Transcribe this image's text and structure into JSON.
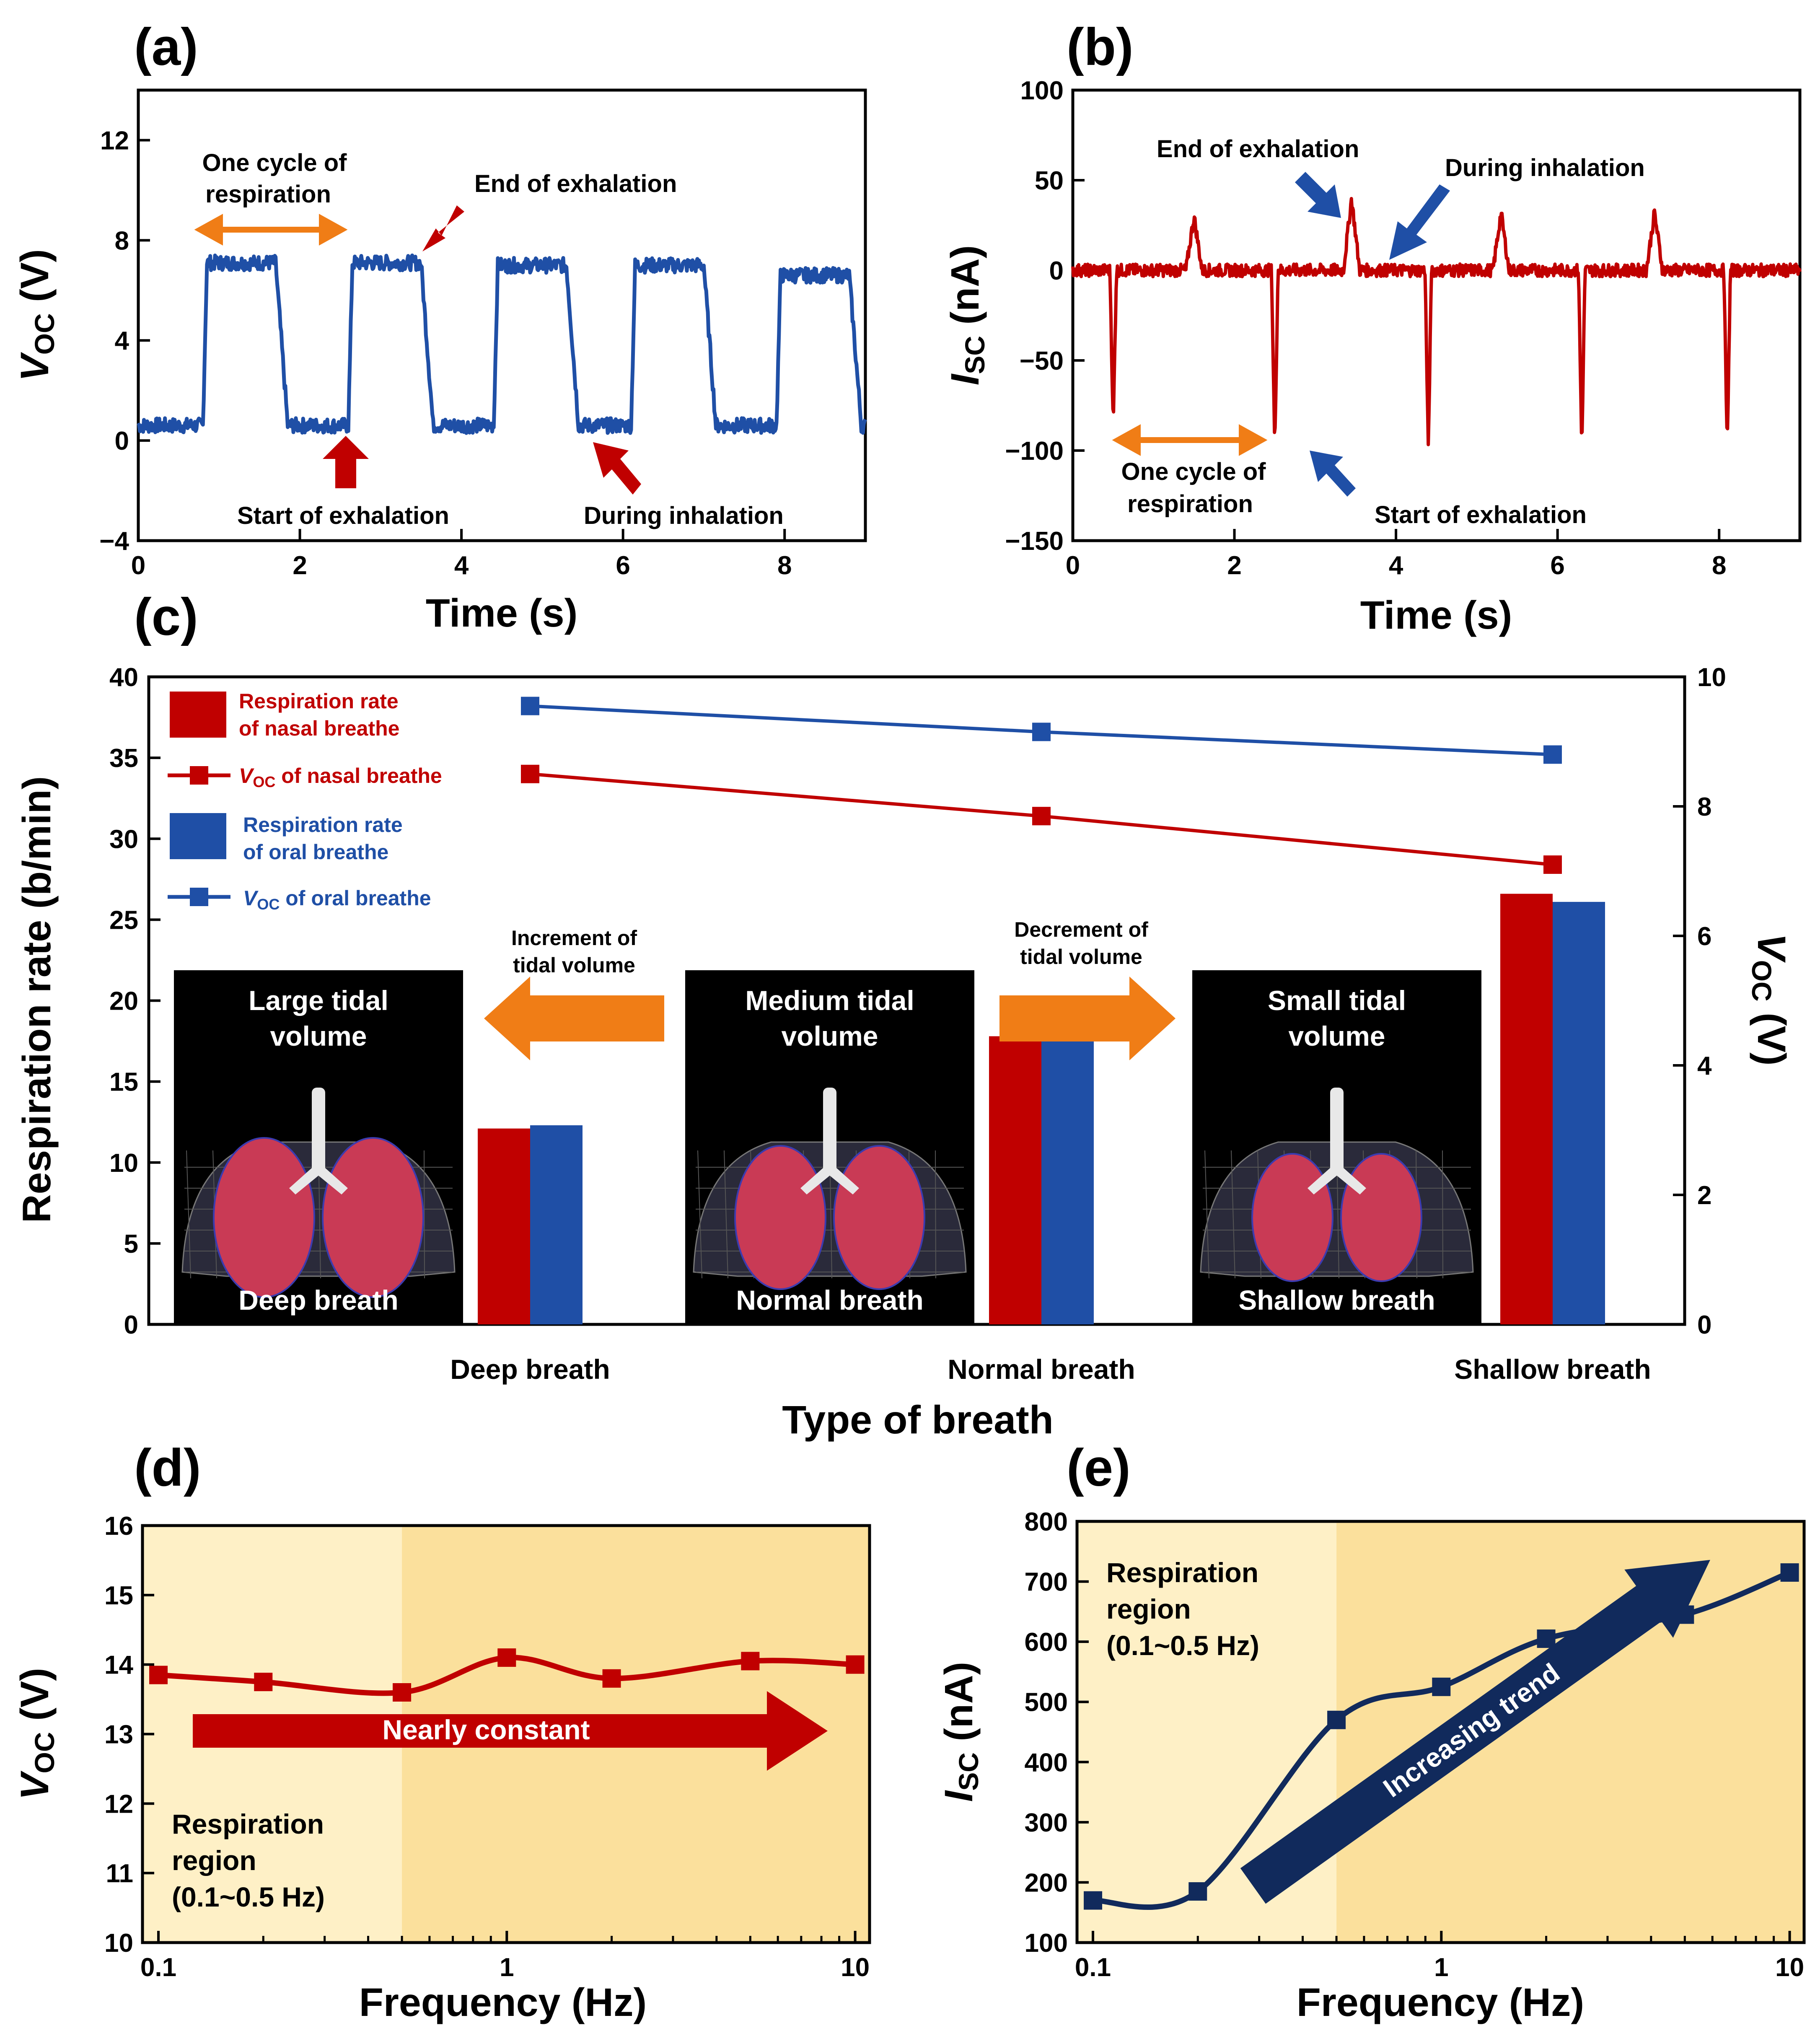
{
  "colors": {
    "blue": "#1f4fa6",
    "red": "#c00000",
    "navy": "#112a5c",
    "orange": "#f07d16",
    "region_light": "#fef0c6",
    "region_dark": "#fbe09c"
  },
  "panels": {
    "a": "(a)",
    "b": "(b)",
    "c": "(c)",
    "d": "(d)",
    "e": "(e)"
  },
  "chart_data": [
    {
      "id": "a",
      "type": "line",
      "series_description": "Square-wave open-circuit voltage, ~0.5 V baseline with ~7 V plateaus",
      "xlabel": "Time (s)",
      "ylabel_main": "V",
      "ylabel_sub": "OC",
      "ylabel_unit": " (V)",
      "xlim": [
        0,
        9
      ],
      "ylim": [
        -4,
        14
      ],
      "xticks": [
        0,
        2,
        4,
        6,
        8
      ],
      "yticks": [
        -4,
        0,
        4,
        8,
        12
      ],
      "ytick_labels": [
        "−4",
        "0",
        "4",
        "8",
        "12"
      ],
      "plateaus": [
        {
          "start": 0.8,
          "end": 1.7,
          "level": 7.1
        },
        {
          "start": 2.6,
          "end": 3.5,
          "level": 7.1
        },
        {
          "start": 4.4,
          "end": 5.3,
          "level": 7.0
        },
        {
          "start": 6.1,
          "end": 7.0,
          "level": 7.0
        },
        {
          "start": 7.9,
          "end": 8.8,
          "level": 6.6
        }
      ],
      "baseline": 0.6,
      "annotations": {
        "cycle_l1": "One cycle of",
        "cycle_l2": "respiration",
        "end_exh": "End of exhalation",
        "start_exh": "Start of exhalation",
        "during_inh": "During inhalation"
      }
    },
    {
      "id": "b",
      "type": "line",
      "series_description": "Short-circuit current with negative spikes (~-100 nA) and positive spikes (~+35 nA)",
      "xlabel": "Time (s)",
      "ylabel_main": "I",
      "ylabel_sub": "SC",
      "ylabel_unit": " (nA)",
      "xlim": [
        0,
        9
      ],
      "ylim": [
        -150,
        100
      ],
      "xticks": [
        0,
        2,
        4,
        6,
        8
      ],
      "yticks": [
        -150,
        -100,
        -50,
        0,
        50,
        100
      ],
      "ytick_labels": [
        "−150",
        "−100",
        "−50",
        "0",
        "50",
        "100"
      ],
      "neg_spikes": [
        [
          0.5,
          -88
        ],
        [
          2.5,
          -100
        ],
        [
          4.4,
          -100
        ],
        [
          6.3,
          -100
        ],
        [
          8.1,
          -100
        ]
      ],
      "pos_spikes": [
        [
          1.5,
          30
        ],
        [
          3.45,
          40
        ],
        [
          5.3,
          32
        ],
        [
          7.2,
          32
        ]
      ],
      "annotations": {
        "end_exh": "End of exhalation",
        "during_inh": "During inhalation",
        "cycle_l1": "One cycle of",
        "cycle_l2": "respiration",
        "start_exh": "Start of exhalation"
      }
    },
    {
      "id": "c",
      "type": "bar",
      "xlabel": "Type of breath",
      "ylabel": "Respiration rate (b/min)",
      "y2label_main": "V",
      "y2label_sub": "OC",
      "y2label_unit": " (V)",
      "categories": [
        "Deep breath",
        "Normal breath",
        "Shallow breath"
      ],
      "ylim": [
        0,
        40
      ],
      "yticks": [
        0,
        5,
        10,
        15,
        20,
        25,
        30,
        35,
        40
      ],
      "y2lim": [
        0,
        10
      ],
      "y2ticks": [
        0,
        2,
        4,
        6,
        8,
        10
      ],
      "bar_series": [
        {
          "name_l1": "Respiration rate",
          "name_l2": "of nasal breathe",
          "values": [
            12.1,
            17.8,
            26.6
          ]
        },
        {
          "name_l1": "Respiration rate",
          "name_l2": "of oral breathe",
          "values": [
            12.3,
            17.9,
            26.1
          ]
        }
      ],
      "line_series": [
        {
          "name_main": "V",
          "name_sub": "OC",
          "name_rest": " of nasal breathe",
          "values": [
            8.5,
            7.85,
            7.1
          ]
        },
        {
          "name_main": "V",
          "name_sub": "OC",
          "name_rest": " of oral breathe",
          "values": [
            9.55,
            9.15,
            8.8
          ]
        }
      ],
      "annotations": {
        "increment_l1": "Increment of",
        "increment_l2": "tidal volume",
        "decrement_l1": "Decrement of",
        "decrement_l2": "tidal volume"
      },
      "insets": [
        {
          "title_l1": "Large tidal",
          "title_l2": "volume",
          "caption": "Deep breath",
          "lung_scale": 1.0
        },
        {
          "title_l1": "Medium tidal",
          "title_l2": "volume",
          "caption": "Normal breath",
          "lung_scale": 0.9
        },
        {
          "title_l1": "Small tidal",
          "title_l2": "volume",
          "caption": "Shallow breath",
          "lung_scale": 0.8
        }
      ]
    },
    {
      "id": "d",
      "type": "scatter",
      "xscale": "log",
      "xlabel": "Frequency (Hz)",
      "ylabel_main": "V",
      "ylabel_sub": "OC",
      "ylabel_unit": " (V)",
      "xlim": [
        0.09,
        11
      ],
      "ylim": [
        10,
        16
      ],
      "xticks": [
        0.1,
        1,
        10
      ],
      "xtick_labels": [
        "0.1",
        "1",
        "10"
      ],
      "yticks": [
        10,
        11,
        12,
        13,
        14,
        15,
        16
      ],
      "x": [
        0.1,
        0.2,
        0.5,
        1,
        2,
        5,
        10
      ],
      "y": [
        13.85,
        13.75,
        13.6,
        14.1,
        13.8,
        14.05,
        14.0
      ],
      "region_end": 0.5,
      "region_l1": "Respiration",
      "region_l2": "region",
      "region_l3": "(0.1~0.5 Hz)",
      "trend_label": "Nearly constant"
    },
    {
      "id": "e",
      "type": "scatter",
      "xscale": "log",
      "xlabel": "Frequency (Hz)",
      "ylabel_main": "I",
      "ylabel_sub": "SC",
      "ylabel_unit": " (nA)",
      "xlim": [
        0.09,
        11
      ],
      "ylim": [
        100,
        800
      ],
      "xticks": [
        0.1,
        1,
        10
      ],
      "xtick_labels": [
        "0.1",
        "1",
        "10"
      ],
      "yticks": [
        100,
        200,
        300,
        400,
        500,
        600,
        700,
        800
      ],
      "x": [
        0.1,
        0.2,
        0.5,
        1,
        2,
        5,
        10
      ],
      "y": [
        170,
        185,
        470,
        525,
        605,
        645,
        715
      ],
      "region_end": 0.5,
      "region_l1": "Respiration",
      "region_l2": "region",
      "region_l3": "(0.1~0.5 Hz)",
      "trend_label": "Increasing trend"
    }
  ]
}
